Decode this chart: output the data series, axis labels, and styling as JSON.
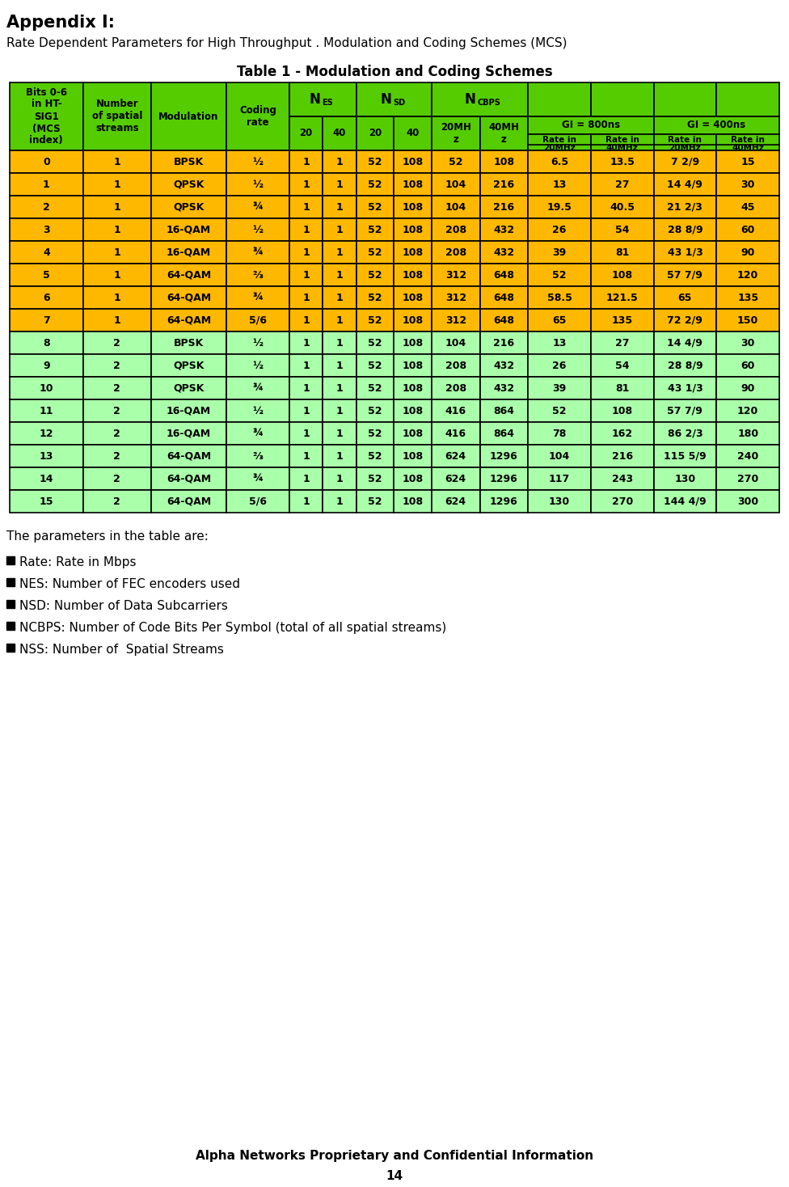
{
  "title_appendix": "Appendix I:",
  "subtitle": "Rate Dependent Parameters for High Throughput . Modulation and Coding Schemes (MCS)",
  "table_title": "Table 1 - Modulation and Coding Schemes",
  "footer_line1": "Alpha Networks Proprietary and Confidential Information",
  "footer_line2": "14",
  "params_intro": "The parameters in the table are:",
  "bullet_points": [
    "Rate: Rate in Mbps",
    "NES: Number of FEC encoders used",
    "NSD: Number of Data Subcarriers",
    "NCBPS: Number of Code Bits Per Symbol (total of all spatial streams)",
    "NSS: Number of  Spatial Streams"
  ],
  "green_header_bg": "#55CC00",
  "yellow_row_bg": "#FFB800",
  "light_green_row_bg": "#AAFFAA",
  "table_rows": [
    [
      0,
      1,
      "BPSK",
      "½",
      1,
      1,
      52,
      108,
      52,
      108,
      "6.5",
      "13.5",
      "7 2/9",
      15
    ],
    [
      1,
      1,
      "QPSK",
      "½",
      1,
      1,
      52,
      108,
      104,
      216,
      13,
      27,
      "14 4/9",
      30
    ],
    [
      2,
      1,
      "QPSK",
      "¾",
      1,
      1,
      52,
      108,
      104,
      216,
      "19.5",
      "40.5",
      "21 2/3",
      45
    ],
    [
      3,
      1,
      "16-QAM",
      "½",
      1,
      1,
      52,
      108,
      208,
      432,
      26,
      54,
      "28 8/9",
      60
    ],
    [
      4,
      1,
      "16-QAM",
      "¾",
      1,
      1,
      52,
      108,
      208,
      432,
      39,
      81,
      "43 1/3",
      90
    ],
    [
      5,
      1,
      "64-QAM",
      "⅔",
      1,
      1,
      52,
      108,
      312,
      648,
      52,
      108,
      "57 7/9",
      120
    ],
    [
      6,
      1,
      "64-QAM",
      "¾",
      1,
      1,
      52,
      108,
      312,
      648,
      "58.5",
      "121.5",
      65,
      135
    ],
    [
      7,
      1,
      "64-QAM",
      "5/6",
      1,
      1,
      52,
      108,
      312,
      648,
      65,
      135,
      "72 2/9",
      150
    ],
    [
      8,
      2,
      "BPSK",
      "½",
      1,
      1,
      52,
      108,
      104,
      216,
      13,
      27,
      "14 4/9",
      30
    ],
    [
      9,
      2,
      "QPSK",
      "½",
      1,
      1,
      52,
      108,
      208,
      432,
      26,
      54,
      "28 8/9",
      60
    ],
    [
      10,
      2,
      "QPSK",
      "¾",
      1,
      1,
      52,
      108,
      208,
      432,
      39,
      81,
      "43 1/3",
      90
    ],
    [
      11,
      2,
      "16-QAM",
      "½",
      1,
      1,
      52,
      108,
      416,
      864,
      52,
      108,
      "57 7/9",
      120
    ],
    [
      12,
      2,
      "16-QAM",
      "¾",
      1,
      1,
      52,
      108,
      416,
      864,
      78,
      162,
      "86 2/3",
      180
    ],
    [
      13,
      2,
      "64-QAM",
      "⅔",
      1,
      1,
      52,
      108,
      624,
      1296,
      104,
      216,
      "115 5/9",
      240
    ],
    [
      14,
      2,
      "64-QAM",
      "¾",
      1,
      1,
      52,
      108,
      624,
      1296,
      117,
      243,
      130,
      270
    ],
    [
      15,
      2,
      "64-QAM",
      "5/6",
      1,
      1,
      52,
      108,
      624,
      1296,
      130,
      270,
      "144 4/9",
      300
    ]
  ]
}
